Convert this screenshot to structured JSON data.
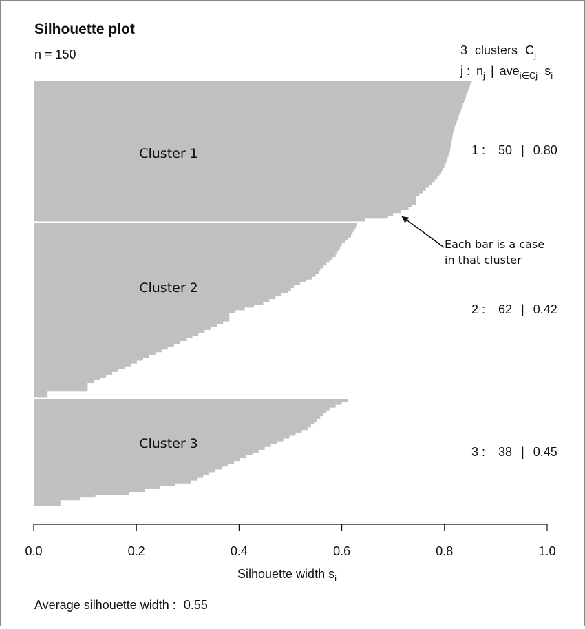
{
  "chart_data": {
    "type": "bar",
    "orientation": "horizontal",
    "title": "Silhouette plot",
    "n_label": "n = 150",
    "header": {
      "line1_count": "3",
      "line1_text": "clusters",
      "line1_symbol": "C",
      "line1_symbol_sub": "j",
      "line2_j": "j :",
      "line2_n": "n",
      "line2_n_sub": "j",
      "line2_sep": "|",
      "line2_ave": "ave",
      "line2_ave_sub": "i∈Cj",
      "line2_s": "s",
      "line2_s_sub": "i"
    },
    "xlabel": "Silhouette width s",
    "xlabel_sub": "i",
    "xlim": [
      0,
      1
    ],
    "xticks": [
      "0.0",
      "0.2",
      "0.4",
      "0.6",
      "0.8",
      "1.0"
    ],
    "bar_color": "#c0c0c0",
    "footer_label": "Average silhouette width :",
    "footer_value": "0.55",
    "annotation": [
      "Each bar is a case",
      "in that cluster"
    ],
    "clusters": [
      {
        "name": "Cluster 1",
        "stats": {
          "j": "1 :",
          "n": "50",
          "sep": "|",
          "ave": "0.80"
        },
        "values": [
          0.853,
          0.85,
          0.848,
          0.846,
          0.844,
          0.842,
          0.84,
          0.838,
          0.836,
          0.834,
          0.832,
          0.83,
          0.828,
          0.826,
          0.824,
          0.822,
          0.82,
          0.818,
          0.817,
          0.816,
          0.815,
          0.814,
          0.813,
          0.812,
          0.811,
          0.81,
          0.808,
          0.806,
          0.804,
          0.802,
          0.8,
          0.797,
          0.794,
          0.79,
          0.786,
          0.781,
          0.776,
          0.77,
          0.764,
          0.758,
          0.751,
          0.744,
          0.744,
          0.744,
          0.737,
          0.73,
          0.715,
          0.7,
          0.69,
          0.645
        ]
      },
      {
        "name": "Cluster 2",
        "stats": {
          "j": "2 :",
          "n": "62",
          "sep": "|",
          "ave": "0.42"
        },
        "values": [
          0.63,
          0.627,
          0.624,
          0.621,
          0.618,
          0.612,
          0.606,
          0.6,
          0.597,
          0.594,
          0.591,
          0.588,
          0.582,
          0.576,
          0.57,
          0.564,
          0.558,
          0.555,
          0.549,
          0.543,
          0.531,
          0.519,
          0.507,
          0.501,
          0.495,
          0.483,
          0.471,
          0.459,
          0.447,
          0.429,
          0.411,
          0.393,
          0.381,
          0.381,
          0.381,
          0.369,
          0.357,
          0.345,
          0.333,
          0.321,
          0.309,
          0.297,
          0.285,
          0.273,
          0.261,
          0.249,
          0.237,
          0.225,
          0.213,
          0.201,
          0.189,
          0.177,
          0.165,
          0.153,
          0.141,
          0.129,
          0.117,
          0.105,
          0.105,
          0.105,
          0.027,
          0.027
        ]
      },
      {
        "name": "Cluster 3",
        "stats": {
          "j": "3 :",
          "n": "38",
          "sep": "|",
          "ave": "0.45"
        },
        "values": [
          0.612,
          0.6,
          0.588,
          0.576,
          0.57,
          0.564,
          0.558,
          0.552,
          0.546,
          0.54,
          0.534,
          0.522,
          0.51,
          0.498,
          0.486,
          0.474,
          0.462,
          0.45,
          0.438,
          0.426,
          0.414,
          0.402,
          0.39,
          0.378,
          0.366,
          0.354,
          0.342,
          0.33,
          0.318,
          0.306,
          0.276,
          0.246,
          0.216,
          0.186,
          0.12,
          0.09,
          0.052,
          0.052
        ]
      }
    ]
  }
}
